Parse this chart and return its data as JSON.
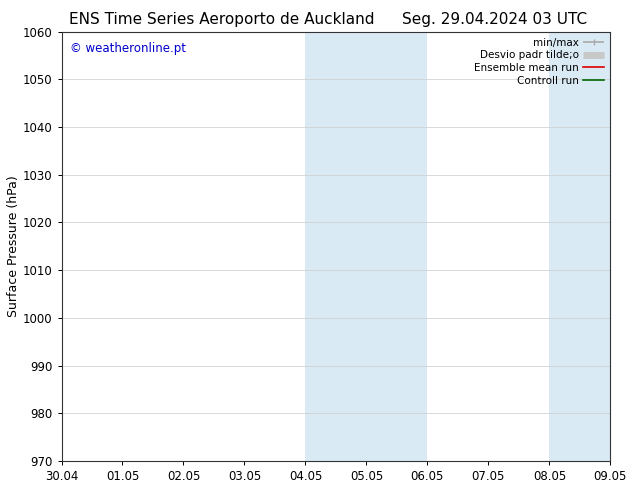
{
  "title_left": "ENS Time Series Aeroporto de Auckland",
  "title_right": "Seg. 29.04.2024 03 UTC",
  "ylabel": "Surface Pressure (hPa)",
  "ylim": [
    970,
    1060
  ],
  "yticks": [
    970,
    980,
    990,
    1000,
    1010,
    1020,
    1030,
    1040,
    1050,
    1060
  ],
  "xtick_labels": [
    "30.04",
    "01.05",
    "02.05",
    "03.05",
    "04.05",
    "05.05",
    "06.05",
    "07.05",
    "08.05",
    "09.05"
  ],
  "watermark": "© weatheronline.pt",
  "watermark_color": "#0000cc",
  "legend_entries": [
    {
      "label": "min/max",
      "color": "#aaaaaa",
      "lw": 1.2
    },
    {
      "label": "Desvio padr tilde;o",
      "color": "#c8c8c8",
      "lw": 5
    },
    {
      "label": "Ensemble mean run",
      "color": "#dd0000",
      "lw": 1.2
    },
    {
      "label": "Controll run",
      "color": "#006600",
      "lw": 1.2
    }
  ],
  "shaded_bands": [
    {
      "xstart": 4,
      "xend": 5,
      "color": "#daeaf5"
    },
    {
      "xstart": 5,
      "xend": 6,
      "color": "#daeaf5"
    },
    {
      "xstart": 8,
      "xend": 9,
      "color": "#daeaf5"
    },
    {
      "xstart": 9,
      "xend": 10,
      "color": "#daeaf5"
    }
  ],
  "background_color": "#ffffff",
  "plot_bg_color": "#ffffff",
  "border_color": "#333333",
  "title_fontsize": 11,
  "axis_label_fontsize": 9,
  "tick_fontsize": 8.5,
  "legend_fontsize": 7.5
}
